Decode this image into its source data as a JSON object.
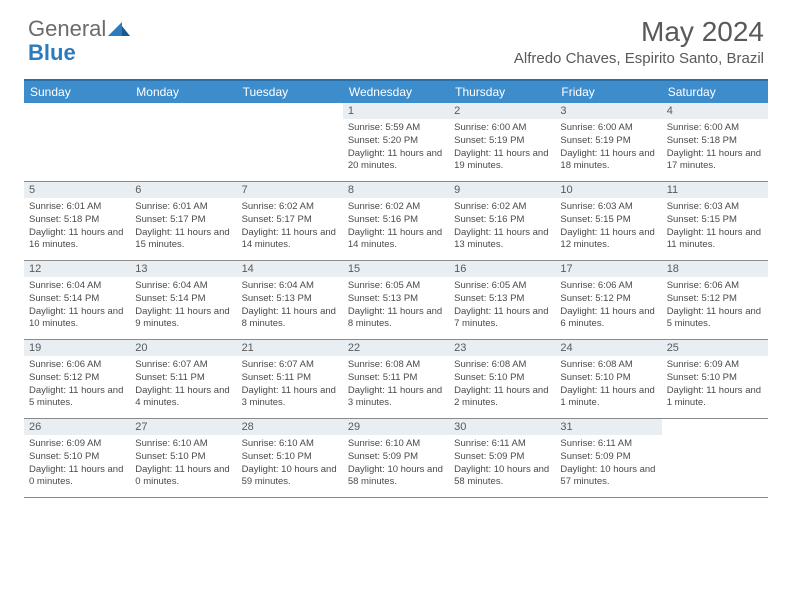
{
  "brand": {
    "part1": "General",
    "part2": "Blue"
  },
  "title": "May 2024",
  "location": "Alfredo Chaves, Espirito Santo, Brazil",
  "colors": {
    "header_bg": "#3d8ccc",
    "header_border": "#2a6fa8",
    "daynum_bg": "#e9eef2",
    "text": "#4a4a4a",
    "title_text": "#595959",
    "logo_gray": "#6b6b6b",
    "logo_blue": "#2c7bbd",
    "row_border": "#8a8a8a"
  },
  "day_headers": [
    "Sunday",
    "Monday",
    "Tuesday",
    "Wednesday",
    "Thursday",
    "Friday",
    "Saturday"
  ],
  "weeks": [
    [
      {
        "n": "",
        "sunrise": "",
        "sunset": "",
        "daylight": ""
      },
      {
        "n": "",
        "sunrise": "",
        "sunset": "",
        "daylight": ""
      },
      {
        "n": "",
        "sunrise": "",
        "sunset": "",
        "daylight": ""
      },
      {
        "n": "1",
        "sunrise": "Sunrise: 5:59 AM",
        "sunset": "Sunset: 5:20 PM",
        "daylight": "Daylight: 11 hours and 20 minutes."
      },
      {
        "n": "2",
        "sunrise": "Sunrise: 6:00 AM",
        "sunset": "Sunset: 5:19 PM",
        "daylight": "Daylight: 11 hours and 19 minutes."
      },
      {
        "n": "3",
        "sunrise": "Sunrise: 6:00 AM",
        "sunset": "Sunset: 5:19 PM",
        "daylight": "Daylight: 11 hours and 18 minutes."
      },
      {
        "n": "4",
        "sunrise": "Sunrise: 6:00 AM",
        "sunset": "Sunset: 5:18 PM",
        "daylight": "Daylight: 11 hours and 17 minutes."
      }
    ],
    [
      {
        "n": "5",
        "sunrise": "Sunrise: 6:01 AM",
        "sunset": "Sunset: 5:18 PM",
        "daylight": "Daylight: 11 hours and 16 minutes."
      },
      {
        "n": "6",
        "sunrise": "Sunrise: 6:01 AM",
        "sunset": "Sunset: 5:17 PM",
        "daylight": "Daylight: 11 hours and 15 minutes."
      },
      {
        "n": "7",
        "sunrise": "Sunrise: 6:02 AM",
        "sunset": "Sunset: 5:17 PM",
        "daylight": "Daylight: 11 hours and 14 minutes."
      },
      {
        "n": "8",
        "sunrise": "Sunrise: 6:02 AM",
        "sunset": "Sunset: 5:16 PM",
        "daylight": "Daylight: 11 hours and 14 minutes."
      },
      {
        "n": "9",
        "sunrise": "Sunrise: 6:02 AM",
        "sunset": "Sunset: 5:16 PM",
        "daylight": "Daylight: 11 hours and 13 minutes."
      },
      {
        "n": "10",
        "sunrise": "Sunrise: 6:03 AM",
        "sunset": "Sunset: 5:15 PM",
        "daylight": "Daylight: 11 hours and 12 minutes."
      },
      {
        "n": "11",
        "sunrise": "Sunrise: 6:03 AM",
        "sunset": "Sunset: 5:15 PM",
        "daylight": "Daylight: 11 hours and 11 minutes."
      }
    ],
    [
      {
        "n": "12",
        "sunrise": "Sunrise: 6:04 AM",
        "sunset": "Sunset: 5:14 PM",
        "daylight": "Daylight: 11 hours and 10 minutes."
      },
      {
        "n": "13",
        "sunrise": "Sunrise: 6:04 AM",
        "sunset": "Sunset: 5:14 PM",
        "daylight": "Daylight: 11 hours and 9 minutes."
      },
      {
        "n": "14",
        "sunrise": "Sunrise: 6:04 AM",
        "sunset": "Sunset: 5:13 PM",
        "daylight": "Daylight: 11 hours and 8 minutes."
      },
      {
        "n": "15",
        "sunrise": "Sunrise: 6:05 AM",
        "sunset": "Sunset: 5:13 PM",
        "daylight": "Daylight: 11 hours and 8 minutes."
      },
      {
        "n": "16",
        "sunrise": "Sunrise: 6:05 AM",
        "sunset": "Sunset: 5:13 PM",
        "daylight": "Daylight: 11 hours and 7 minutes."
      },
      {
        "n": "17",
        "sunrise": "Sunrise: 6:06 AM",
        "sunset": "Sunset: 5:12 PM",
        "daylight": "Daylight: 11 hours and 6 minutes."
      },
      {
        "n": "18",
        "sunrise": "Sunrise: 6:06 AM",
        "sunset": "Sunset: 5:12 PM",
        "daylight": "Daylight: 11 hours and 5 minutes."
      }
    ],
    [
      {
        "n": "19",
        "sunrise": "Sunrise: 6:06 AM",
        "sunset": "Sunset: 5:12 PM",
        "daylight": "Daylight: 11 hours and 5 minutes."
      },
      {
        "n": "20",
        "sunrise": "Sunrise: 6:07 AM",
        "sunset": "Sunset: 5:11 PM",
        "daylight": "Daylight: 11 hours and 4 minutes."
      },
      {
        "n": "21",
        "sunrise": "Sunrise: 6:07 AM",
        "sunset": "Sunset: 5:11 PM",
        "daylight": "Daylight: 11 hours and 3 minutes."
      },
      {
        "n": "22",
        "sunrise": "Sunrise: 6:08 AM",
        "sunset": "Sunset: 5:11 PM",
        "daylight": "Daylight: 11 hours and 3 minutes."
      },
      {
        "n": "23",
        "sunrise": "Sunrise: 6:08 AM",
        "sunset": "Sunset: 5:10 PM",
        "daylight": "Daylight: 11 hours and 2 minutes."
      },
      {
        "n": "24",
        "sunrise": "Sunrise: 6:08 AM",
        "sunset": "Sunset: 5:10 PM",
        "daylight": "Daylight: 11 hours and 1 minute."
      },
      {
        "n": "25",
        "sunrise": "Sunrise: 6:09 AM",
        "sunset": "Sunset: 5:10 PM",
        "daylight": "Daylight: 11 hours and 1 minute."
      }
    ],
    [
      {
        "n": "26",
        "sunrise": "Sunrise: 6:09 AM",
        "sunset": "Sunset: 5:10 PM",
        "daylight": "Daylight: 11 hours and 0 minutes."
      },
      {
        "n": "27",
        "sunrise": "Sunrise: 6:10 AM",
        "sunset": "Sunset: 5:10 PM",
        "daylight": "Daylight: 11 hours and 0 minutes."
      },
      {
        "n": "28",
        "sunrise": "Sunrise: 6:10 AM",
        "sunset": "Sunset: 5:10 PM",
        "daylight": "Daylight: 10 hours and 59 minutes."
      },
      {
        "n": "29",
        "sunrise": "Sunrise: 6:10 AM",
        "sunset": "Sunset: 5:09 PM",
        "daylight": "Daylight: 10 hours and 58 minutes."
      },
      {
        "n": "30",
        "sunrise": "Sunrise: 6:11 AM",
        "sunset": "Sunset: 5:09 PM",
        "daylight": "Daylight: 10 hours and 58 minutes."
      },
      {
        "n": "31",
        "sunrise": "Sunrise: 6:11 AM",
        "sunset": "Sunset: 5:09 PM",
        "daylight": "Daylight: 10 hours and 57 minutes."
      },
      {
        "n": "",
        "sunrise": "",
        "sunset": "",
        "daylight": ""
      }
    ]
  ]
}
